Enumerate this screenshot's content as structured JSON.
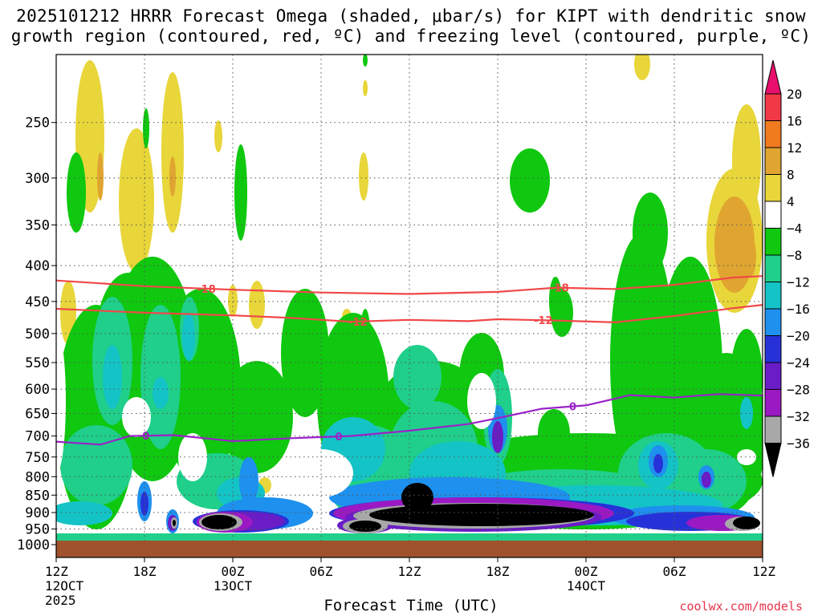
{
  "chart_data": {
    "type": "heatmap",
    "title_line1": "2025101212 HRRR Forecast Omega (shaded, μbar/s) for KIPT with dendritic snow",
    "title_line2": "growth region (contoured, red, ºC) and freezing level (contoured, purple, ºC)",
    "xlabel": "Forecast Time (UTC)",
    "credit": "coolwx.com/models",
    "y_axis": {
      "scale": "log-pressure",
      "range": [
        1000,
        200
      ],
      "ticks": [
        250,
        300,
        350,
        400,
        450,
        500,
        550,
        600,
        650,
        700,
        750,
        800,
        850,
        900,
        950,
        1000
      ],
      "unit": "hPa"
    },
    "x_axis": {
      "range_hours": [
        0,
        48
      ],
      "ticks": [
        {
          "hour": 0,
          "line1": "12Z",
          "line2": "12OCT",
          "line3": "2025"
        },
        {
          "hour": 6,
          "line1": "18Z",
          "line2": "",
          "line3": ""
        },
        {
          "hour": 12,
          "line1": "00Z",
          "line2": "13OCT",
          "line3": ""
        },
        {
          "hour": 18,
          "line1": "06Z",
          "line2": "",
          "line3": ""
        },
        {
          "hour": 24,
          "line1": "12Z",
          "line2": "",
          "line3": ""
        },
        {
          "hour": 30,
          "line1": "18Z",
          "line2": "",
          "line3": ""
        },
        {
          "hour": 36,
          "line1": "00Z",
          "line2": "14OCT",
          "line3": ""
        },
        {
          "hour": 42,
          "line1": "06Z",
          "line2": "",
          "line3": ""
        },
        {
          "hour": 48,
          "line1": "12Z",
          "line2": "",
          "line3": ""
        }
      ]
    },
    "colorbar": {
      "labels": [
        20,
        16,
        12,
        8,
        4,
        -4,
        -8,
        -12,
        -16,
        -20,
        -24,
        -28,
        -32,
        -36
      ],
      "colors": [
        "#f03846",
        "#f07a1e",
        "#e0a530",
        "#e8d63a",
        "#ffffff",
        "#0fc80f",
        "#1fcf8a",
        "#14c3c6",
        "#1e90ee",
        "#2632d8",
        "#6a1cc6",
        "#9b19c3",
        "#a8a8a8",
        "#000000"
      ],
      "top_arrow_color": "#e8106c",
      "bottom_arrow_color": "#000000"
    },
    "contours": {
      "dendritic_-18": {
        "label": "-18",
        "color": "#f04848",
        "hours": [
          0,
          6,
          12,
          18,
          24,
          30,
          34,
          38,
          42,
          46,
          48
        ],
        "pressure": [
          420,
          428,
          433,
          437,
          439,
          436,
          430,
          432,
          426,
          416,
          414
        ]
      },
      "dendritic_-12": {
        "label": "-12",
        "color": "#f04848",
        "hours": [
          0,
          6,
          12,
          16,
          20,
          24,
          28,
          30,
          34,
          38,
          42,
          46,
          48
        ],
        "pressure": [
          461,
          467,
          471,
          475,
          481,
          478,
          480,
          477,
          479,
          482,
          472,
          460,
          455
        ]
      },
      "freezing_0": {
        "label": "0",
        "color": "#9a22c8",
        "hours": [
          0,
          3,
          5,
          8,
          12,
          16,
          20,
          24,
          28,
          30,
          33,
          36,
          39,
          42,
          45,
          48
        ],
        "pressure": [
          713,
          720,
          700,
          698,
          712,
          705,
          700,
          688,
          673,
          660,
          640,
          633,
          612,
          617,
          610,
          613
        ]
      }
    },
    "omega_features": [
      {
        "hours": [
          24,
          36
        ],
        "pressure": [
          850,
          975
        ],
        "value": -40,
        "note": "strong ascent core"
      },
      {
        "hours": [
          11,
          15
        ],
        "pressure": [
          920,
          975
        ],
        "value": -40
      },
      {
        "hours": [
          44,
          48
        ],
        "pressure": [
          380,
          470
        ],
        "value": 10,
        "note": "subsidence"
      },
      {
        "hours": [
          0,
          9
        ],
        "pressure": [
          200,
          430
        ],
        "value": 6,
        "note": "weak subsidence"
      }
    ]
  }
}
